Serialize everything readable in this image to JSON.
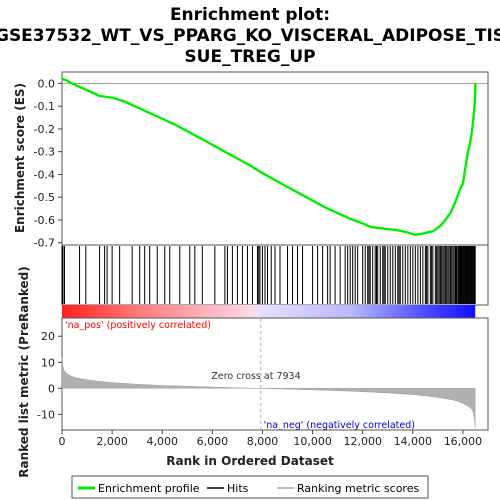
{
  "chart_data": {
    "type": "line",
    "title_lines": [
      "Enrichment plot:",
      "GSE37532_WT_VS_PPARG_KO_VISCERAL_ADIPOSE_TIS",
      "SUE_TREG_UP"
    ],
    "x_axis": {
      "label": "Rank in Ordered Dataset",
      "range": [
        0,
        17000
      ],
      "ticks": [
        0,
        2000,
        4000,
        6000,
        8000,
        10000,
        12000,
        14000,
        16000
      ],
      "tick_labels": [
        "0",
        "2,000",
        "4,000",
        "6,000",
        "8,000",
        "10,000",
        "12,000",
        "14,000",
        "16,000"
      ]
    },
    "es_panel": {
      "ylabel": "Enrichment score (ES)",
      "ylim": [
        -0.71,
        0.05
      ],
      "yticks": [
        0.0,
        -0.1,
        -0.2,
        -0.3,
        -0.4,
        -0.5,
        -0.6,
        -0.7
      ],
      "ytick_labels": [
        "0.0",
        "-0.1",
        "-0.2",
        "-0.3",
        "-0.4",
        "-0.5",
        "-0.6",
        "-0.7"
      ],
      "series": [
        {
          "name": "Enrichment profile",
          "color": "#00ee00",
          "x": [
            0,
            150,
            300,
            600,
            900,
            1200,
            1500,
            1800,
            2100,
            2500,
            3000,
            3500,
            4000,
            4500,
            5000,
            5500,
            6000,
            6500,
            7000,
            7500,
            7934,
            8500,
            9000,
            9500,
            10000,
            10500,
            11000,
            11500,
            12000,
            12300,
            12600,
            13000,
            13400,
            13800,
            14100,
            14400,
            14800,
            15100,
            15300,
            15500,
            15700,
            15900,
            16000,
            16100,
            16200,
            16300,
            16350,
            16400,
            16450,
            16480,
            16500
          ],
          "y": [
            0.02,
            0.015,
            0.005,
            -0.01,
            -0.025,
            -0.04,
            -0.055,
            -0.06,
            -0.065,
            -0.08,
            -0.105,
            -0.13,
            -0.155,
            -0.18,
            -0.21,
            -0.24,
            -0.27,
            -0.3,
            -0.33,
            -0.36,
            -0.39,
            -0.425,
            -0.455,
            -0.485,
            -0.515,
            -0.545,
            -0.57,
            -0.595,
            -0.615,
            -0.63,
            -0.635,
            -0.64,
            -0.645,
            -0.655,
            -0.665,
            -0.66,
            -0.65,
            -0.625,
            -0.6,
            -0.57,
            -0.52,
            -0.46,
            -0.44,
            -0.37,
            -0.3,
            -0.25,
            -0.22,
            -0.17,
            -0.12,
            -0.06,
            0.0
          ]
        }
      ]
    },
    "hits": {
      "name": "Hits",
      "positions": [
        0,
        40,
        100,
        700,
        950,
        1500,
        1700,
        1800,
        2000,
        2300,
        2800,
        3100,
        3300,
        3500,
        3800,
        4100,
        4300,
        4700,
        5100,
        5300,
        5600,
        6100,
        6500,
        6600,
        6800,
        7000,
        7200,
        7400,
        7600,
        7800,
        7850,
        7900,
        8000,
        8100,
        8200,
        8350,
        8500,
        8700,
        9000,
        9200,
        9400,
        9600,
        10000,
        10200,
        10400,
        10600,
        10700,
        10900,
        11100,
        11300,
        11400,
        11500,
        11600,
        11700,
        11800,
        12000,
        12100,
        12200,
        12250,
        12300,
        12400,
        12500,
        12550,
        12600,
        12700,
        12800,
        12850,
        12900,
        13000,
        13100,
        13200,
        13300,
        13400,
        13450,
        13500,
        13600,
        13700,
        13800,
        13900,
        14000,
        14100,
        14200,
        14300,
        14400,
        14500,
        14550,
        14600,
        14700,
        14750,
        14800,
        14900,
        14950,
        15000,
        15050,
        15100,
        15150,
        15200,
        15250,
        15300,
        15350,
        15400,
        15450,
        15500,
        15550,
        15600,
        15650,
        15700,
        15720,
        15750,
        15800,
        15830,
        15860,
        15900,
        15930,
        15960,
        16000,
        16030,
        16060,
        16100,
        16130,
        16160,
        16200,
        16230,
        16260,
        16300,
        16330,
        16360,
        16400,
        16430,
        16460,
        16490
      ]
    },
    "metric_panel": {
      "name": "Ranking metric scores",
      "ylabel": "Ranked list metric (PreRanked)",
      "ylim": [
        -16,
        27
      ],
      "yticks": [
        20,
        10,
        0,
        -10
      ],
      "ytick_labels": [
        "20",
        "10",
        "0",
        "-10"
      ],
      "x": [
        0,
        30,
        80,
        150,
        300,
        500,
        800,
        1200,
        1600,
        2000,
        3000,
        4000,
        5000,
        6000,
        7000,
        7934,
        9000,
        10000,
        11000,
        12000,
        13000,
        14000,
        14500,
        15000,
        15500,
        15800,
        16000,
        16200,
        16350,
        16420,
        16460,
        16490
      ],
      "values": [
        12,
        9,
        7,
        6,
        5,
        4.2,
        3.6,
        3.0,
        2.6,
        2.2,
        1.6,
        1.1,
        0.8,
        0.5,
        0.2,
        0.0,
        -0.3,
        -0.6,
        -0.9,
        -1.3,
        -1.8,
        -2.4,
        -2.9,
        -3.5,
        -4.3,
        -5.0,
        -5.8,
        -6.8,
        -8.0,
        -9.5,
        -12.0,
        -15.5
      ],
      "zero_cross": 7934,
      "zero_cross_label": "Zero cross at 7934",
      "pos_label": "'na_pos' (positively correlated)",
      "neg_label": "'na_neg' (negatively correlated)",
      "pos_color": "#ff0000",
      "neg_color": "#0000ff"
    },
    "legend": {
      "placement": "bottom",
      "entries": [
        "Enrichment profile",
        "Hits",
        "Ranking metric scores"
      ]
    }
  }
}
